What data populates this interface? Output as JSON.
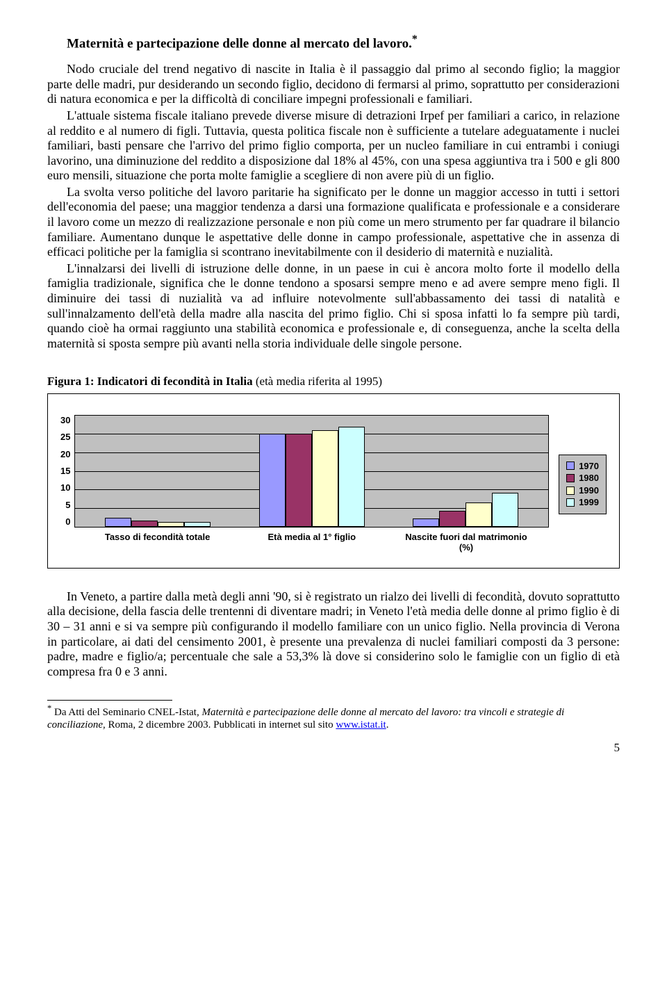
{
  "title": "Maternità e partecipazione delle donne al mercato del lavoro.",
  "title_sup": "*",
  "paragraphs": [
    "Nodo cruciale del trend negativo di nascite in Italia è il passaggio dal primo al secondo figlio; la maggior parte delle madri, pur desiderando un secondo figlio, decidono di fermarsi al primo, soprattutto per considerazioni di natura economica e per la difficoltà di conciliare impegni professionali e familiari.",
    "L'attuale sistema fiscale italiano prevede diverse misure di detrazioni Irpef per familiari a carico, in relazione al reddito e al numero di figli. Tuttavia, questa politica fiscale non è sufficiente a tutelare adeguatamente i nuclei familiari, basti pensare che l'arrivo del primo figlio comporta, per un nucleo familiare in cui entrambi i coniugi lavorino, una diminuzione del reddito a disposizione dal 18% al 45%, con una spesa aggiuntiva tra i 500 e gli 800 euro mensili, situazione che porta molte famiglie a scegliere di non avere più di un figlio.",
    "La svolta verso politiche del lavoro paritarie ha significato per le donne un maggior accesso in tutti i settori dell'economia del paese; una maggior tendenza a darsi una formazione qualificata e professionale e  a considerare il lavoro come un mezzo di realizzazione personale e non più come un mero strumento per far quadrare il bilancio familiare. Aumentano dunque le aspettative delle donne in campo professionale, aspettative che in assenza di efficaci politiche per la famiglia si scontrano inevitabilmente con il desiderio di maternità e nuzialità.",
    "L'innalzarsi dei livelli di istruzione delle donne, in un paese in cui è ancora molto forte il modello della famiglia tradizionale, significa che le donne tendono a sposarsi sempre meno e ad avere sempre meno figli. Il diminuire dei tassi di nuzialità va ad influire notevolmente sull'abbassamento dei tassi di natalità e sull'innalzamento dell'età della madre alla nascita del primo figlio. Chi si sposa infatti lo fa sempre più tardi, quando cioè ha ormai raggiunto una stabilità economica e professionale e, di conseguenza, anche la scelta della maternità si sposta sempre più avanti nella storia individuale delle singole persone."
  ],
  "figure": {
    "caption_bold": "Figura 1: Indicatori di fecondità in Italia",
    "caption_paren": " (età media riferita al 1995)",
    "chart": {
      "type": "bar",
      "plot_bg": "#c0c0c0",
      "grid_color": "#000000",
      "y_ticks": [
        "30",
        "25",
        "20",
        "15",
        "10",
        "5",
        "0"
      ],
      "y_max": 30,
      "categories": [
        "Tasso di fecondità totale",
        "Età media al 1° figlio",
        "Nascite fuori dal matrimonio (%)"
      ],
      "series": [
        {
          "label": "1970",
          "color": "#9999ff",
          "values": [
            2.4,
            25.0,
            2.2
          ]
        },
        {
          "label": "1980",
          "color": "#993366",
          "values": [
            1.6,
            25.0,
            4.3
          ]
        },
        {
          "label": "1990",
          "color": "#ffffcc",
          "values": [
            1.3,
            26.0,
            6.5
          ]
        },
        {
          "label": "1999",
          "color": "#ccffff",
          "values": [
            1.2,
            27.0,
            9.2
          ]
        }
      ]
    }
  },
  "post_chart_paragraph": "In Veneto, a partire dalla metà degli anni '90, si è registrato un rialzo dei livelli di fecondità, dovuto soprattutto alla decisione, della fascia delle trentenni di diventare madri; in Veneto l'età media delle donne al primo figlio è di 30 – 31 anni e si va sempre più configurando il modello familiare con un unico figlio. Nella provincia di Verona in particolare, ai dati del censimento 2001, è presente una prevalenza di nuclei familiari composti da 3 persone: padre, madre e figlio/a; percentuale che sale a 53,3%  là dove si considerino solo le famiglie con un figlio di età compresa fra 0 e 3 anni.",
  "footnote": {
    "marker": "*",
    "text_pre": " Da Atti del Seminario CNEL-Istat, ",
    "text_ital": "Maternità e partecipazione delle donne al mercato del lavoro: tra vincoli e strategie di conciliazione",
    "text_mid": ", Roma, 2 dicembre 2003. Pubblicati in internet sul sito ",
    "link_text": "www.istat.it",
    "text_end": "."
  },
  "page_number": "5"
}
